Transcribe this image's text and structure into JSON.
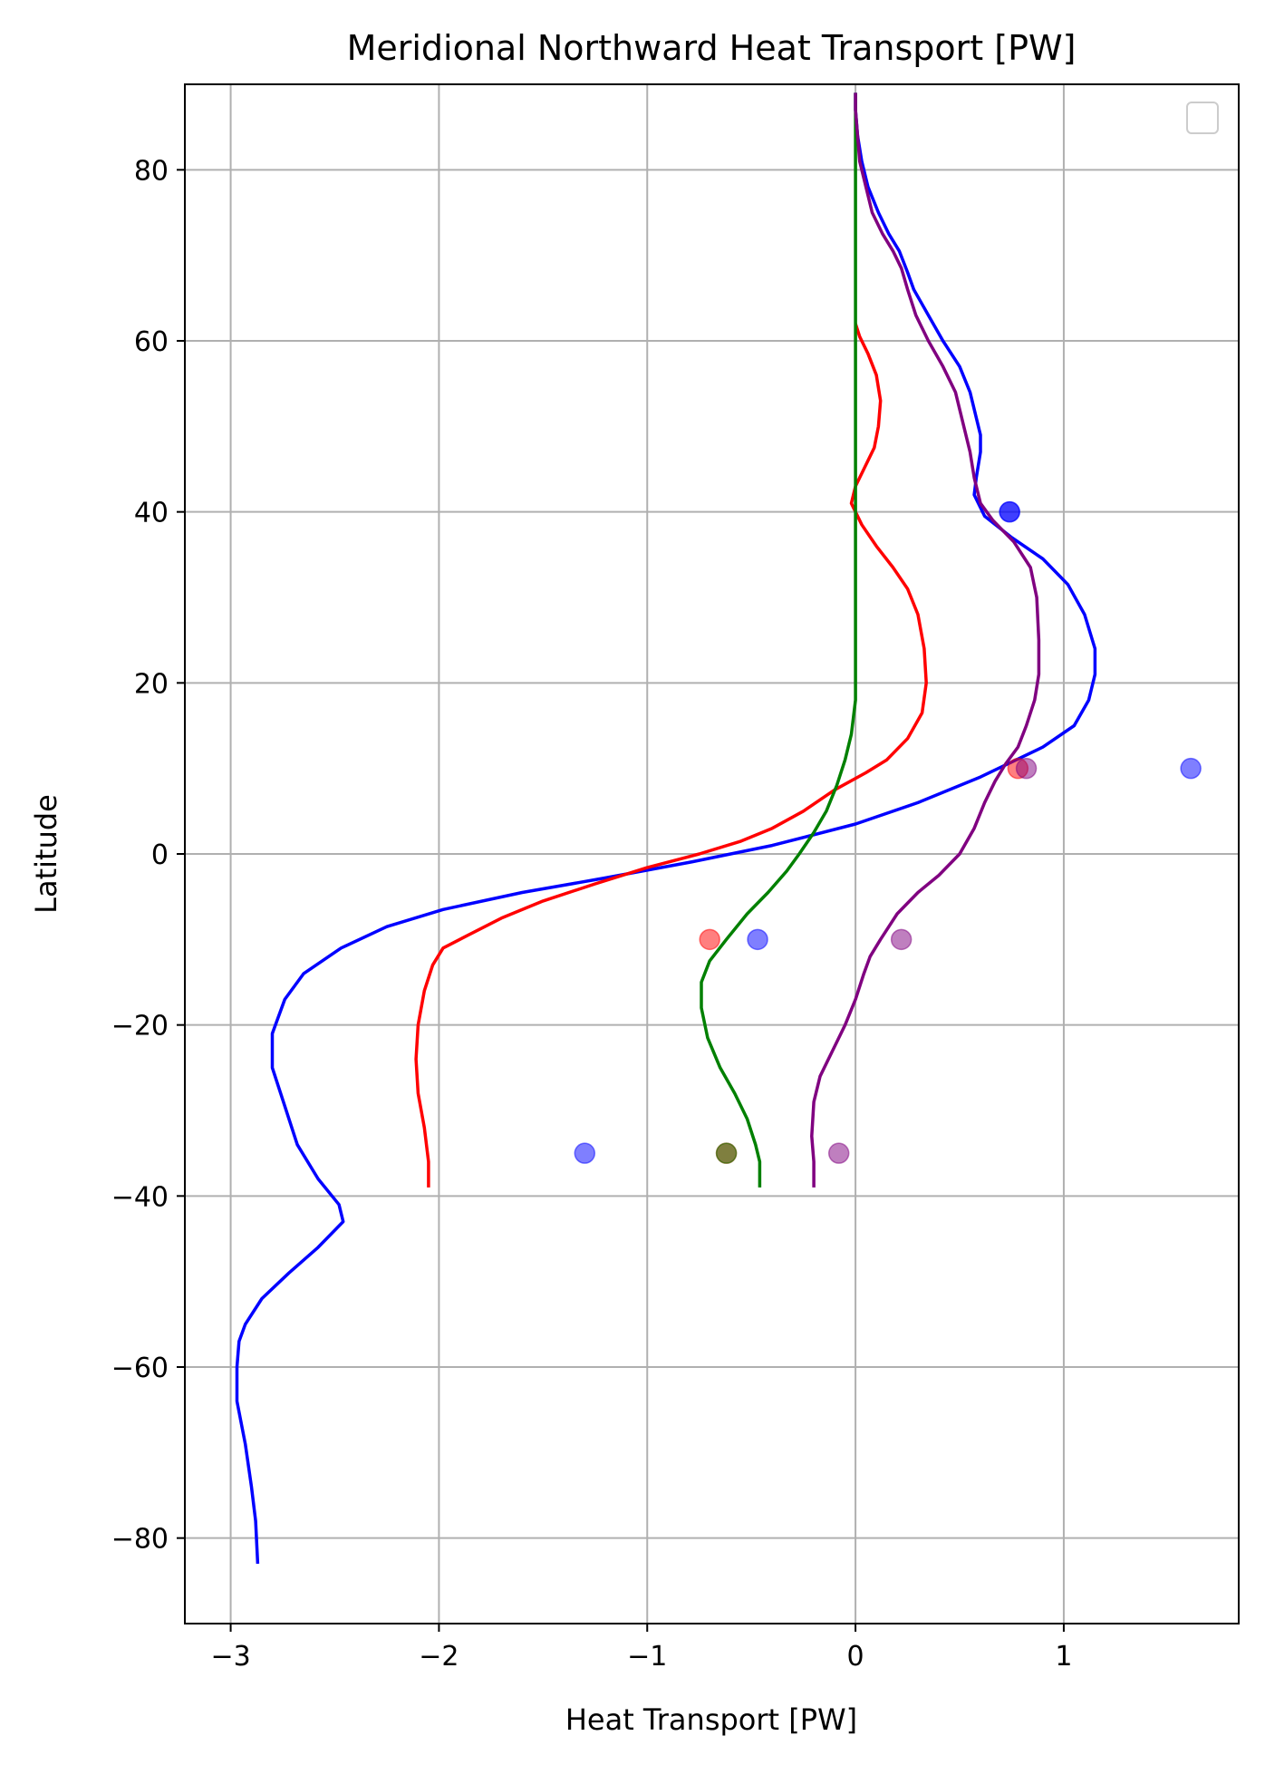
{
  "chart_data": {
    "type": "line",
    "title": "Meridional Northward Heat Transport [PW]",
    "xlabel": "Heat Transport [PW]",
    "ylabel": "Latitude",
    "xlim": [
      -3.22,
      1.84
    ],
    "ylim": [
      -90,
      90
    ],
    "xticks": [
      -3,
      -2,
      -1,
      0,
      1
    ],
    "xtick_labels": [
      "−3",
      "−2",
      "−1",
      "0",
      "1"
    ],
    "yticks": [
      -80,
      -60,
      -40,
      -20,
      0,
      20,
      40,
      60,
      80
    ],
    "ytick_labels": [
      "−80",
      "−60",
      "−40",
      "−20",
      "0",
      "20",
      "40",
      "60",
      "80"
    ],
    "grid": true,
    "legend": "top-right (empty)",
    "series": [
      {
        "color": "#0000ff",
        "points": [
          [
            -2.87,
            -83
          ],
          [
            -2.88,
            -78
          ],
          [
            -2.9,
            -74
          ],
          [
            -2.93,
            -69
          ],
          [
            -2.97,
            -64
          ],
          [
            -2.97,
            -60
          ],
          [
            -2.96,
            -57
          ],
          [
            -2.93,
            -55
          ],
          [
            -2.85,
            -52
          ],
          [
            -2.72,
            -49
          ],
          [
            -2.58,
            -46
          ],
          [
            -2.46,
            -43
          ],
          [
            -2.48,
            -41
          ],
          [
            -2.58,
            -38
          ],
          [
            -2.68,
            -34
          ],
          [
            -2.76,
            -28
          ],
          [
            -2.8,
            -25
          ],
          [
            -2.8,
            -21
          ],
          [
            -2.74,
            -17
          ],
          [
            -2.65,
            -14
          ],
          [
            -2.47,
            -11
          ],
          [
            -2.25,
            -8.5
          ],
          [
            -1.98,
            -6.5
          ],
          [
            -1.6,
            -4.5
          ],
          [
            -1.2,
            -2.8
          ],
          [
            -0.8,
            -1.0
          ],
          [
            -0.4,
            1.0
          ],
          [
            0.0,
            3.5
          ],
          [
            0.3,
            6
          ],
          [
            0.6,
            9
          ],
          [
            0.9,
            12.5
          ],
          [
            1.05,
            15
          ],
          [
            1.12,
            18
          ],
          [
            1.15,
            21
          ],
          [
            1.15,
            24
          ],
          [
            1.1,
            28
          ],
          [
            1.02,
            31.5
          ],
          [
            0.9,
            34.5
          ],
          [
            0.75,
            37
          ],
          [
            0.62,
            39.5
          ],
          [
            0.57,
            42
          ],
          [
            0.58,
            44
          ],
          [
            0.6,
            47
          ],
          [
            0.6,
            49
          ],
          [
            0.58,
            51
          ],
          [
            0.55,
            54
          ],
          [
            0.5,
            57
          ],
          [
            0.42,
            60
          ],
          [
            0.35,
            63
          ],
          [
            0.28,
            66
          ],
          [
            0.25,
            68
          ],
          [
            0.21,
            70.5
          ],
          [
            0.16,
            72.5
          ],
          [
            0.11,
            75
          ],
          [
            0.06,
            78
          ],
          [
            0.03,
            81
          ],
          [
            0.01,
            84
          ],
          [
            0.0,
            87
          ],
          [
            0.0,
            89
          ]
        ]
      },
      {
        "color": "#ff0000",
        "points": [
          [
            -2.05,
            -39
          ],
          [
            -2.05,
            -36
          ],
          [
            -2.07,
            -32
          ],
          [
            -2.1,
            -28
          ],
          [
            -2.11,
            -24
          ],
          [
            -2.1,
            -20
          ],
          [
            -2.07,
            -16
          ],
          [
            -2.03,
            -13
          ],
          [
            -1.98,
            -11
          ],
          [
            -1.86,
            -9.5
          ],
          [
            -1.7,
            -7.5
          ],
          [
            -1.5,
            -5.5
          ],
          [
            -1.25,
            -3.5
          ],
          [
            -1.0,
            -1.6
          ],
          [
            -0.75,
            0.0
          ],
          [
            -0.55,
            1.5
          ],
          [
            -0.4,
            3
          ],
          [
            -0.25,
            5
          ],
          [
            -0.1,
            7.5
          ],
          [
            0.05,
            9.5
          ],
          [
            0.15,
            11
          ],
          [
            0.25,
            13.5
          ],
          [
            0.32,
            16.5
          ],
          [
            0.34,
            20
          ],
          [
            0.33,
            24
          ],
          [
            0.3,
            28
          ],
          [
            0.25,
            31
          ],
          [
            0.18,
            33.5
          ],
          [
            0.1,
            36
          ],
          [
            0.03,
            38.5
          ],
          [
            -0.02,
            41
          ],
          [
            0.0,
            43
          ],
          [
            0.04,
            45
          ],
          [
            0.09,
            47.5
          ],
          [
            0.11,
            50
          ],
          [
            0.12,
            53
          ],
          [
            0.1,
            56
          ],
          [
            0.06,
            58.5
          ],
          [
            0.02,
            60.5
          ],
          [
            0.0,
            62
          ]
        ]
      },
      {
        "color": "#008000",
        "points": [
          [
            -0.46,
            -39
          ],
          [
            -0.46,
            -36
          ],
          [
            -0.48,
            -34
          ],
          [
            -0.52,
            -31
          ],
          [
            -0.58,
            -28
          ],
          [
            -0.65,
            -25
          ],
          [
            -0.71,
            -21.5
          ],
          [
            -0.74,
            -18
          ],
          [
            -0.74,
            -15
          ],
          [
            -0.7,
            -12.5
          ],
          [
            -0.62,
            -10
          ],
          [
            -0.52,
            -7
          ],
          [
            -0.42,
            -4.5
          ],
          [
            -0.33,
            -2
          ],
          [
            -0.27,
            0
          ],
          [
            -0.2,
            2.5
          ],
          [
            -0.14,
            5
          ],
          [
            -0.09,
            8
          ],
          [
            -0.05,
            11
          ],
          [
            -0.02,
            14
          ],
          [
            0.0,
            18
          ],
          [
            0.0,
            22
          ],
          [
            0.0,
            27
          ],
          [
            0.0,
            32
          ],
          [
            0.0,
            38
          ],
          [
            0.0,
            45
          ],
          [
            0.0,
            55
          ],
          [
            0.0,
            70
          ],
          [
            0.0,
            89
          ]
        ]
      },
      {
        "color": "#800080",
        "points": [
          [
            -0.2,
            -39
          ],
          [
            -0.2,
            -36
          ],
          [
            -0.21,
            -33
          ],
          [
            -0.2,
            -29
          ],
          [
            -0.17,
            -26
          ],
          [
            -0.11,
            -23
          ],
          [
            -0.05,
            -20
          ],
          [
            0.0,
            -17
          ],
          [
            0.04,
            -14
          ],
          [
            0.07,
            -12
          ],
          [
            0.12,
            -10
          ],
          [
            0.2,
            -7
          ],
          [
            0.3,
            -4.5
          ],
          [
            0.4,
            -2.5
          ],
          [
            0.5,
            0
          ],
          [
            0.57,
            3
          ],
          [
            0.62,
            6
          ],
          [
            0.67,
            8.5
          ],
          [
            0.72,
            10.5
          ],
          [
            0.78,
            12.5
          ],
          [
            0.82,
            15
          ],
          [
            0.86,
            18
          ],
          [
            0.88,
            21
          ],
          [
            0.88,
            25
          ],
          [
            0.87,
            30
          ],
          [
            0.84,
            33.5
          ],
          [
            0.76,
            36.5
          ],
          [
            0.66,
            39
          ],
          [
            0.6,
            41
          ],
          [
            0.57,
            44
          ],
          [
            0.55,
            47
          ],
          [
            0.52,
            50
          ],
          [
            0.48,
            54
          ],
          [
            0.42,
            57
          ],
          [
            0.35,
            60
          ],
          [
            0.29,
            63
          ],
          [
            0.25,
            66
          ],
          [
            0.22,
            68.5
          ],
          [
            0.18,
            70.5
          ],
          [
            0.13,
            72.5
          ],
          [
            0.08,
            75
          ],
          [
            0.05,
            78
          ],
          [
            0.02,
            81
          ],
          [
            0.01,
            84
          ],
          [
            0.0,
            87
          ],
          [
            0.0,
            89
          ]
        ]
      }
    ],
    "markers": [
      {
        "x": 0.74,
        "y": 40,
        "color": "#0000ff"
      },
      {
        "x": 0.74,
        "y": 40,
        "color": "#0000ff"
      },
      {
        "x": 1.61,
        "y": 10,
        "color": "#0000ff"
      },
      {
        "x": -0.47,
        "y": -10,
        "color": "#0000ff"
      },
      {
        "x": -1.3,
        "y": -35,
        "color": "#0000ff"
      },
      {
        "x": 0.78,
        "y": 10,
        "color": "#ff0000"
      },
      {
        "x": -0.7,
        "y": -10,
        "color": "#ff0000"
      },
      {
        "x": -0.62,
        "y": -35,
        "color": "#ff0000"
      },
      {
        "x": -0.62,
        "y": -35,
        "color": "#008000"
      },
      {
        "x": 0.82,
        "y": 10,
        "color": "#800080"
      },
      {
        "x": 0.22,
        "y": -10,
        "color": "#800080"
      },
      {
        "x": -0.08,
        "y": -35,
        "color": "#800080"
      }
    ]
  }
}
